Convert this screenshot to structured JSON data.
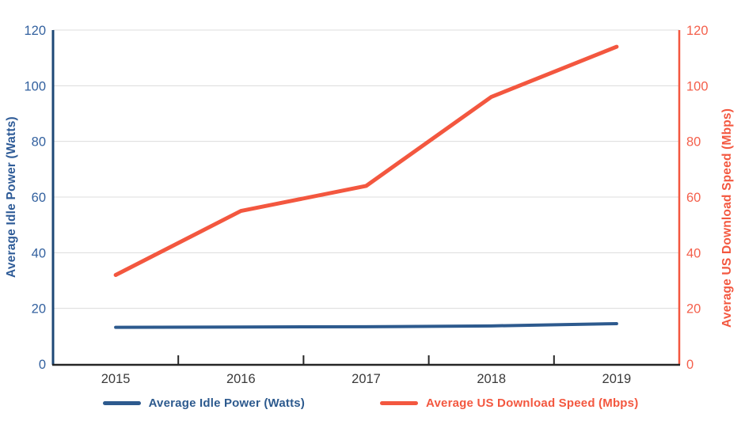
{
  "chart_data": {
    "type": "line",
    "categories": [
      "2015",
      "2016",
      "2017",
      "2018",
      "2019"
    ],
    "series": [
      {
        "name": "Average Idle Power (Watts)",
        "axis": "left",
        "color": "#2D5A8E",
        "stroke_width": 4,
        "values": [
          13.2,
          13.3,
          13.4,
          13.7,
          14.5
        ]
      },
      {
        "name": "Average US Download Speed (Mbps)",
        "axis": "right",
        "color": "#F3573F",
        "stroke_width": 5,
        "values": [
          32,
          55,
          64,
          96,
          114
        ]
      }
    ],
    "left_axis": {
      "title": "Average Idle Power (Watts)",
      "min": 0,
      "max": 120,
      "step": 20,
      "ticks": [
        0,
        20,
        40,
        60,
        80,
        100,
        120
      ],
      "label_color": "#33619F",
      "line_color": "#1E4876"
    },
    "right_axis": {
      "title": "Average US Download Speed (Mbps)",
      "min": 0,
      "max": 120,
      "step": 20,
      "ticks": [
        0,
        20,
        40,
        60,
        80,
        100,
        120
      ],
      "label_color": "#F4604C",
      "line_color": "#F3573F"
    },
    "x_axis": {
      "line_color": "#262626",
      "label_color": "#3A3A3A"
    },
    "grid": true,
    "gridline_color": "#DCDCDC",
    "legend_position": "bottom",
    "legend": [
      {
        "label": "Average Idle Power (Watts)",
        "color": "#2D5A8E"
      },
      {
        "label": "Average US Download Speed (Mbps)",
        "color": "#F3573F"
      }
    ],
    "title": "",
    "xlabel": "",
    "ylim": [
      0,
      120
    ]
  }
}
